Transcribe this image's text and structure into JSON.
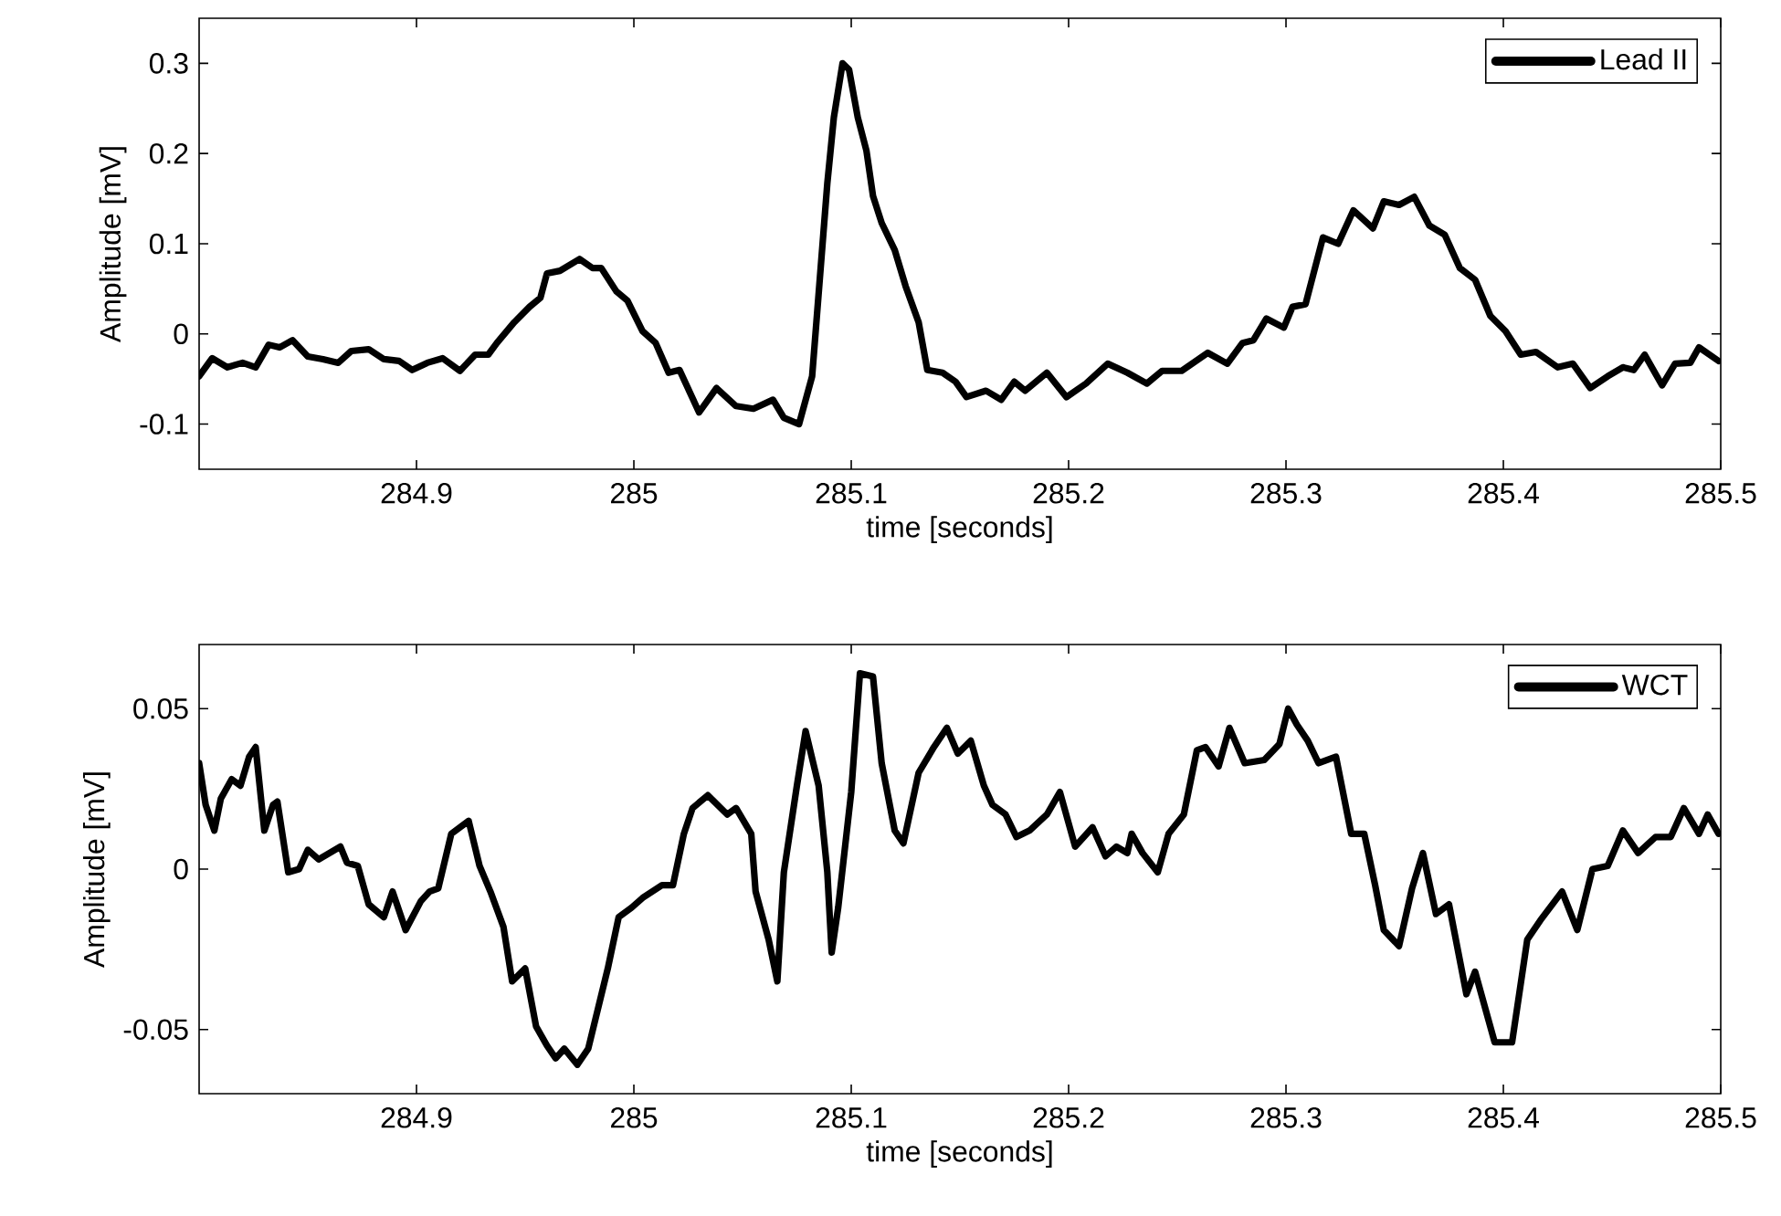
{
  "chart_data": [
    {
      "type": "line",
      "xlabel": "time [seconds]",
      "ylabel": "Amplitude [mV]",
      "xlim": [
        284.8,
        285.5
      ],
      "ylim": [
        -0.15,
        0.35
      ],
      "xticks": [
        284.9,
        285,
        285.1,
        285.2,
        285.3,
        285.4,
        285.5
      ],
      "yticks": [
        -0.1,
        0,
        0.1,
        0.2,
        0.3
      ],
      "legend": "top right",
      "grid": false,
      "series": [
        {
          "name": "Lead II",
          "color": "#000000",
          "x": [
            284.8,
            284.806,
            284.813,
            284.82,
            284.826,
            284.832,
            284.837,
            284.843,
            284.85,
            284.857,
            284.864,
            284.87,
            284.878,
            284.885,
            284.892,
            284.898,
            284.905,
            284.912,
            284.92,
            284.927,
            284.933,
            284.937,
            284.945,
            284.952,
            284.957,
            284.96,
            284.966,
            284.975,
            284.981,
            284.985,
            284.992,
            284.997,
            285.004,
            285.01,
            285.016,
            285.021,
            285.03,
            285.038,
            285.047,
            285.055,
            285.064,
            285.069,
            285.076,
            285.082,
            285.089,
            285.092,
            285.096,
            285.099,
            285.103,
            285.107,
            285.11,
            285.114,
            285.12,
            285.125,
            285.131,
            285.135,
            285.142,
            285.148,
            285.153,
            285.162,
            285.169,
            285.175,
            285.18,
            285.19,
            285.199,
            285.208,
            285.218,
            285.227,
            285.236,
            285.243,
            285.252,
            285.264,
            285.273,
            285.28,
            285.285,
            285.291,
            285.299,
            285.303,
            285.309,
            285.317,
            285.324,
            285.331,
            285.34,
            285.345,
            285.352,
            285.359,
            285.366,
            285.373,
            285.38,
            285.387,
            285.394,
            285.401,
            285.408,
            285.415,
            285.425,
            285.432,
            285.44,
            285.448,
            285.455,
            285.46,
            285.465,
            285.473,
            285.479,
            285.486,
            285.49,
            285.499
          ],
          "values": [
            -0.047,
            -0.027,
            -0.037,
            -0.032,
            -0.037,
            -0.012,
            -0.015,
            -0.007,
            -0.025,
            -0.028,
            -0.032,
            -0.019,
            -0.017,
            -0.028,
            -0.03,
            -0.04,
            -0.032,
            -0.027,
            -0.041,
            -0.023,
            -0.023,
            -0.01,
            0.013,
            0.03,
            0.04,
            0.067,
            0.07,
            0.083,
            0.073,
            0.073,
            0.047,
            0.037,
            0.003,
            -0.01,
            -0.043,
            -0.04,
            -0.087,
            -0.06,
            -0.08,
            -0.083,
            -0.073,
            -0.093,
            -0.1,
            -0.047,
            0.167,
            0.24,
            0.3,
            0.293,
            0.24,
            0.203,
            0.153,
            0.123,
            0.093,
            0.053,
            0.013,
            -0.04,
            -0.043,
            -0.053,
            -0.07,
            -0.063,
            -0.073,
            -0.053,
            -0.063,
            -0.043,
            -0.07,
            -0.055,
            -0.033,
            -0.043,
            -0.055,
            -0.041,
            -0.041,
            -0.021,
            -0.033,
            -0.01,
            -0.007,
            0.017,
            0.007,
            0.03,
            0.033,
            0.107,
            0.1,
            0.137,
            0.117,
            0.147,
            0.143,
            0.152,
            0.12,
            0.11,
            0.073,
            0.06,
            0.02,
            0.003,
            -0.023,
            -0.02,
            -0.037,
            -0.033,
            -0.06,
            -0.047,
            -0.037,
            -0.04,
            -0.023,
            -0.057,
            -0.033,
            -0.032,
            -0.015,
            -0.03
          ]
        }
      ]
    },
    {
      "type": "line",
      "xlabel": "time [seconds]",
      "ylabel": "Amplitude [mV]",
      "xlim": [
        284.8,
        285.5
      ],
      "ylim": [
        -0.07,
        0.07
      ],
      "xticks": [
        284.9,
        285,
        285.1,
        285.2,
        285.3,
        285.4,
        285.5
      ],
      "yticks": [
        -0.05,
        0,
        0.05
      ],
      "legend": "top right",
      "grid": false,
      "series": [
        {
          "name": "WCT",
          "color": "#000000",
          "x": [
            284.8,
            284.803,
            284.807,
            284.81,
            284.815,
            284.819,
            284.823,
            284.826,
            284.83,
            284.834,
            284.836,
            284.841,
            284.846,
            284.85,
            284.855,
            284.865,
            284.868,
            284.873,
            284.878,
            284.885,
            284.889,
            284.895,
            284.902,
            284.906,
            284.91,
            284.916,
            284.924,
            284.929,
            284.934,
            284.94,
            284.944,
            284.95,
            284.955,
            284.96,
            284.964,
            284.968,
            284.974,
            284.979,
            284.988,
            284.993,
            284.999,
            285.004,
            285.013,
            285.018,
            285.023,
            285.027,
            285.034,
            285.043,
            285.047,
            285.054,
            285.056,
            285.062,
            285.066,
            285.069,
            285.075,
            285.079,
            285.085,
            285.089,
            285.091,
            285.094,
            285.1,
            285.104,
            285.11,
            285.114,
            285.12,
            285.124,
            285.131,
            285.138,
            285.144,
            285.149,
            285.155,
            285.161,
            285.165,
            285.171,
            285.176,
            285.182,
            285.19,
            285.196,
            285.203,
            285.211,
            285.217,
            285.222,
            285.227,
            285.229,
            285.234,
            285.241,
            285.246,
            285.253,
            285.259,
            285.263,
            285.269,
            285.274,
            285.281,
            285.29,
            285.297,
            285.301,
            285.305,
            285.31,
            285.315,
            285.323,
            285.33,
            285.336,
            285.341,
            285.345,
            285.352,
            285.358,
            285.363,
            285.369,
            285.375,
            285.383,
            285.387,
            285.396,
            285.404,
            285.411,
            285.417,
            285.427,
            285.434,
            285.441,
            285.448,
            285.455,
            285.462,
            285.47,
            285.477,
            285.483,
            285.49,
            285.494,
            285.499
          ],
          "values": [
            0.033,
            0.02,
            0.012,
            0.022,
            0.028,
            0.026,
            0.035,
            0.038,
            0.012,
            0.02,
            0.021,
            -0.001,
            0.0,
            0.006,
            0.003,
            0.007,
            0.002,
            0.001,
            -0.011,
            -0.015,
            -0.007,
            -0.019,
            -0.01,
            -0.007,
            -0.006,
            0.011,
            0.015,
            0.001,
            -0.007,
            -0.018,
            -0.035,
            -0.031,
            -0.049,
            -0.055,
            -0.059,
            -0.056,
            -0.061,
            -0.056,
            -0.031,
            -0.015,
            -0.012,
            -0.009,
            -0.005,
            -0.005,
            0.011,
            0.019,
            0.023,
            0.017,
            0.019,
            0.011,
            -0.007,
            -0.022,
            -0.035,
            -0.001,
            0.026,
            0.043,
            0.026,
            -0.001,
            -0.026,
            -0.012,
            0.024,
            0.061,
            0.06,
            0.033,
            0.012,
            0.008,
            0.03,
            0.038,
            0.044,
            0.036,
            0.04,
            0.026,
            0.02,
            0.017,
            0.01,
            0.012,
            0.017,
            0.024,
            0.007,
            0.013,
            0.004,
            0.007,
            0.005,
            0.011,
            0.005,
            -0.001,
            0.011,
            0.017,
            0.037,
            0.038,
            0.032,
            0.044,
            0.033,
            0.034,
            0.039,
            0.05,
            0.045,
            0.04,
            0.033,
            0.035,
            0.011,
            0.011,
            -0.005,
            -0.019,
            -0.024,
            -0.006,
            0.005,
            -0.014,
            -0.011,
            -0.039,
            -0.032,
            -0.054,
            -0.054,
            -0.022,
            -0.016,
            -0.007,
            -0.019,
            0.0,
            0.001,
            0.012,
            0.005,
            0.01,
            0.01,
            0.019,
            0.011,
            0.017,
            0.011
          ]
        }
      ]
    }
  ]
}
